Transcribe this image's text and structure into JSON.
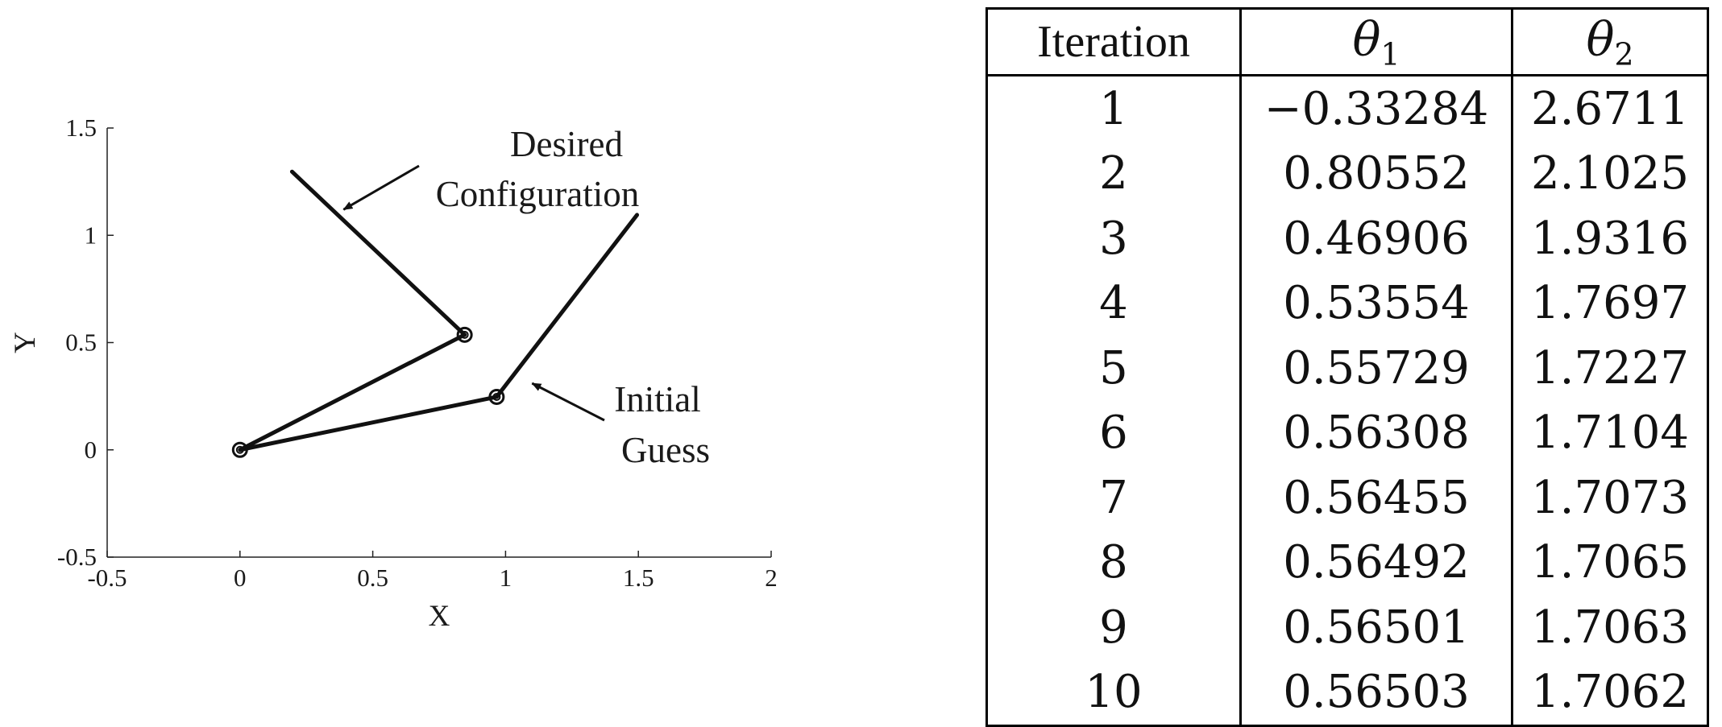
{
  "chart_data": {
    "type": "line",
    "xlabel": "X",
    "ylabel": "Y",
    "xlim": [
      -0.5,
      2
    ],
    "ylim": [
      -0.5,
      1.5
    ],
    "xticks": [
      -0.5,
      0,
      0.5,
      1,
      1.5,
      2
    ],
    "xtick_labels": [
      "-0.5",
      "0",
      "0.5",
      "1",
      "1.5",
      "2"
    ],
    "yticks": [
      -0.5,
      0,
      0.5,
      1,
      1.5
    ],
    "ytick_labels": [
      "-0.5",
      "0",
      "0.5",
      "1",
      "1.5"
    ],
    "grid": false,
    "series": [
      {
        "x": [
          0,
          0.846,
          0.196
        ],
        "y": [
          0,
          0.5363,
          1.2965
        ]
      },
      {
        "x": [
          0,
          0.9665,
          1.495
        ],
        "y": [
          0,
          0.2469,
          1.095
        ]
      }
    ],
    "joints": [
      {
        "x": 0,
        "y": 0
      },
      {
        "x": 0.846,
        "y": 0.5363
      },
      {
        "x": 0.9665,
        "y": 0.2469
      }
    ],
    "annotations": [
      {
        "lines": [
          "Desired",
          "Configuration"
        ],
        "arrow_to": {
          "x": 0.39,
          "y": 1.12
        }
      },
      {
        "lines": [
          "Initial",
          "Guess"
        ],
        "arrow_to": {
          "x": 1.1,
          "y": 0.31
        }
      }
    ]
  },
  "table": {
    "headers": [
      "Iteration",
      "θ",
      "θ"
    ],
    "header_subscripts": [
      "",
      "1",
      "2"
    ],
    "rows": [
      [
        "1",
        "−0.33284",
        "2.6711"
      ],
      [
        "2",
        "0.80552",
        "2.1025"
      ],
      [
        "3",
        "0.46906",
        "1.9316"
      ],
      [
        "4",
        "0.53554",
        "1.7697"
      ],
      [
        "5",
        "0.55729",
        "1.7227"
      ],
      [
        "6",
        "0.56308",
        "1.7104"
      ],
      [
        "7",
        "0.56455",
        "1.7073"
      ],
      [
        "8",
        "0.56492",
        "1.7065"
      ],
      [
        "9",
        "0.56501",
        "1.7063"
      ],
      [
        "10",
        "0.56503",
        "1.7062"
      ]
    ]
  }
}
